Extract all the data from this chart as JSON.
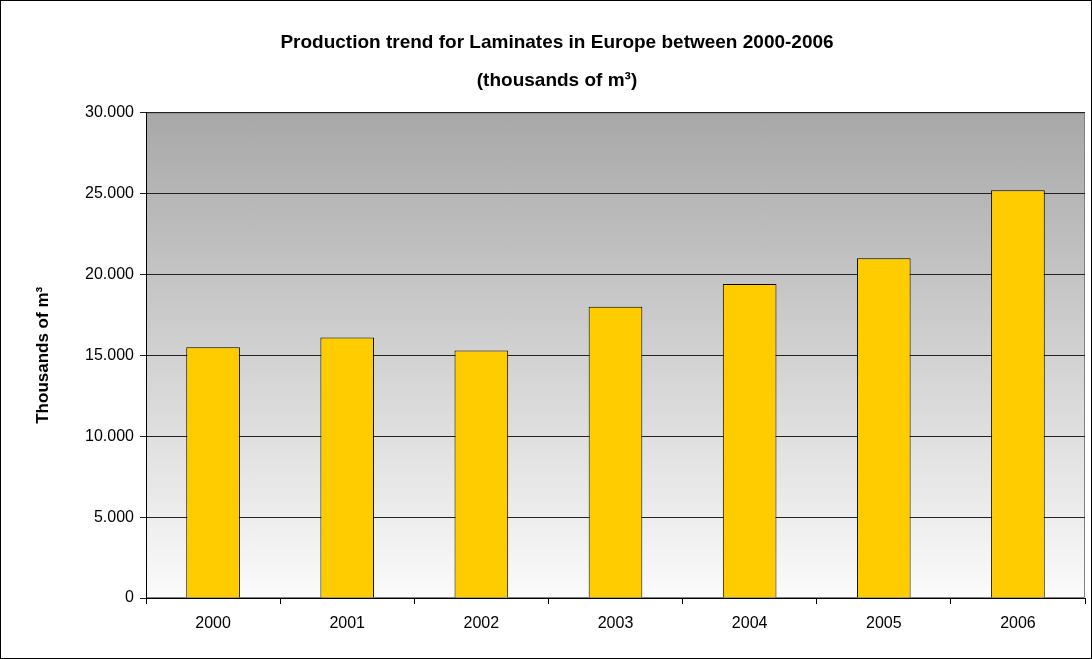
{
  "chart_data": {
    "type": "bar",
    "title": "Production trend for Laminates in Europe between 2000-2006",
    "subtitle": "(thousands of m³)",
    "ylabel": "Thousands of m³",
    "categories": [
      "2000",
      "2001",
      "2002",
      "2003",
      "2004",
      "2005",
      "2006"
    ],
    "values": [
      15500,
      16100,
      15300,
      18000,
      19400,
      21000,
      25200
    ],
    "color": "#ffcc00",
    "ylim": [
      0,
      30000
    ],
    "yticks": [
      0,
      {
        "value": 5000,
        "label": "5.000"
      },
      {
        "value": 10000,
        "label": "10.000"
      },
      {
        "value": 15000,
        "label": "15.000"
      },
      {
        "value": 20000,
        "label": "20.000"
      },
      {
        "value": 25000,
        "label": "25.000"
      },
      {
        "value": 30000,
        "label": "30.000"
      }
    ],
    "grid": "y",
    "legend": false
  }
}
